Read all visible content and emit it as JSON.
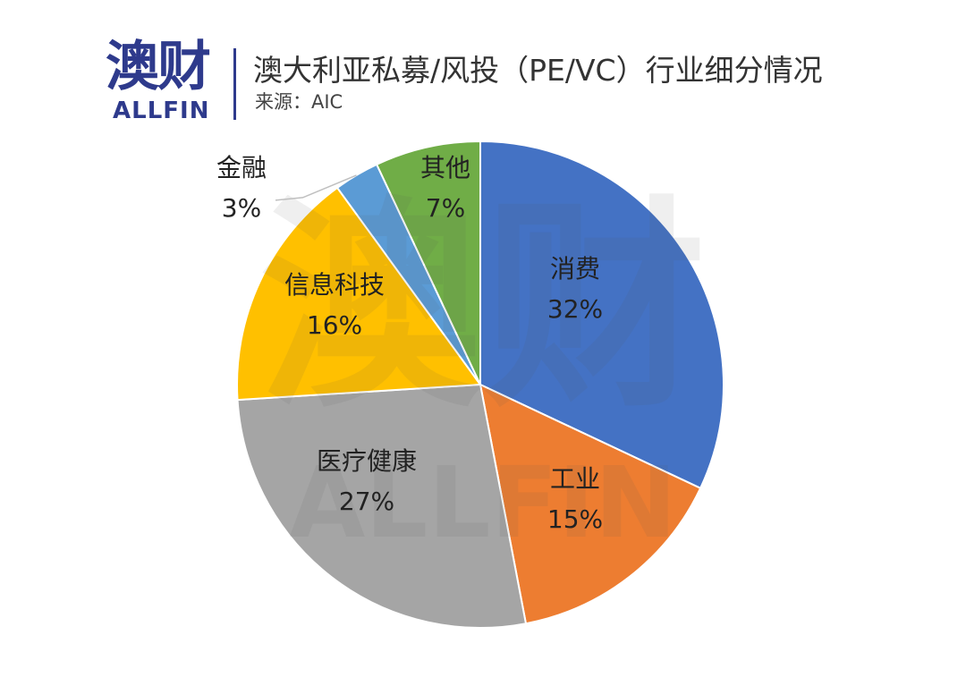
{
  "logo": {
    "cn": "澳财",
    "en": "ALLFIN"
  },
  "header": {
    "title": "澳大利亚私募/风投（PE/VC）行业细分情况",
    "source": "来源：AIC"
  },
  "chart_data": {
    "type": "pie",
    "title": "澳大利亚私募/风投（PE/VC）行业细分情况",
    "start_angle_deg": 0,
    "direction": "clockwise",
    "slices": [
      {
        "label": "消费",
        "value": 32,
        "value_text": "32%",
        "color": "#4472c4"
      },
      {
        "label": "工业",
        "value": 15,
        "value_text": "15%",
        "color": "#ed7d31"
      },
      {
        "label": "医疗健康",
        "value": 27,
        "value_text": "27%",
        "color": "#a5a5a5"
      },
      {
        "label": "信息科技",
        "value": 16,
        "value_text": "16%",
        "color": "#ffc000"
      },
      {
        "label": "金融",
        "value": 3,
        "value_text": "3%",
        "color": "#5b9bd5"
      },
      {
        "label": "其他",
        "value": 7,
        "value_text": "7%",
        "color": "#70ad47"
      }
    ]
  }
}
